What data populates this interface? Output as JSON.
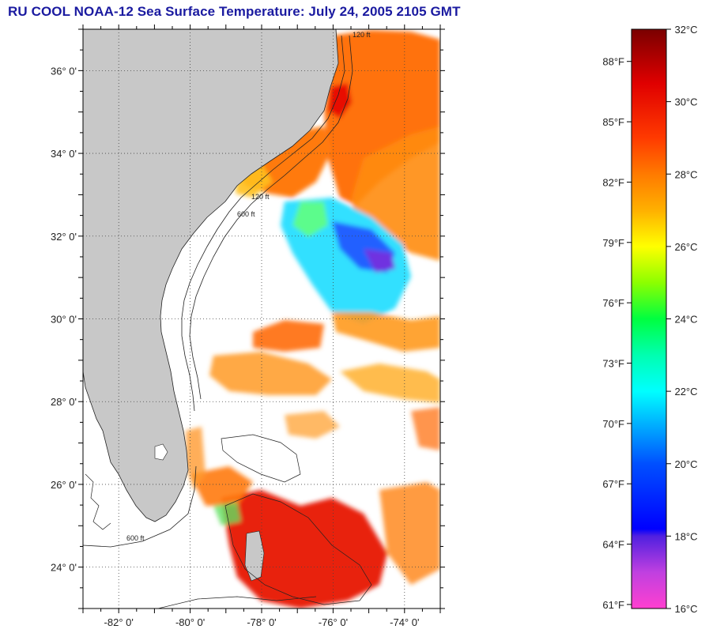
{
  "title": "RU COOL  NOAA-12  Sea Surface Temperature:  July 24, 2005 2105 GMT",
  "map": {
    "lat_ticks": [
      {
        "label": "36° 0'",
        "value": 36
      },
      {
        "label": "34° 0'",
        "value": 34
      },
      {
        "label": "32° 0'",
        "value": 32
      },
      {
        "label": "30° 0'",
        "value": 30
      },
      {
        "label": "28° 0'",
        "value": 28
      },
      {
        "label": "26° 0'",
        "value": 26
      },
      {
        "label": "24° 0'",
        "value": 24
      }
    ],
    "lon_ticks": [
      {
        "label": "-82° 0'",
        "value": -82
      },
      {
        "label": "-80° 0'",
        "value": -80
      },
      {
        "label": "-78° 0'",
        "value": -78
      },
      {
        "label": "-76° 0'",
        "value": -76
      },
      {
        "label": "-74° 0'",
        "value": -74
      }
    ],
    "lat_range": [
      23.0,
      37.0
    ],
    "lon_range": [
      -83.0,
      -73.0
    ],
    "grid": true,
    "land_color": "#c8c8c8",
    "cloud_color": "#ffffff",
    "contour_labels": [
      "120 ft",
      "600 ft"
    ]
  },
  "colorbar": {
    "celsius_labels": [
      "32°C",
      "30°C",
      "28°C",
      "26°C",
      "24°C",
      "22°C",
      "20°C",
      "18°C",
      "16°C"
    ],
    "fahrenheit_labels": [
      "88°F",
      "85°F",
      "82°F",
      "79°F",
      "76°F",
      "73°F",
      "70°F",
      "67°F",
      "64°F",
      "61°F"
    ],
    "range_c": [
      16,
      32
    ],
    "stops": [
      {
        "value_c": 32,
        "color": "#7a0000"
      },
      {
        "value_c": 30.5,
        "color": "#e00000"
      },
      {
        "value_c": 29,
        "color": "#ff3a00"
      },
      {
        "value_c": 28,
        "color": "#ff7a00"
      },
      {
        "value_c": 27,
        "color": "#ffb000"
      },
      {
        "value_c": 26,
        "color": "#ffff00"
      },
      {
        "value_c": 25,
        "color": "#8cff00"
      },
      {
        "value_c": 24,
        "color": "#00ff40"
      },
      {
        "value_c": 23,
        "color": "#00ffb0"
      },
      {
        "value_c": 22,
        "color": "#00ffff"
      },
      {
        "value_c": 21,
        "color": "#00a8ff"
      },
      {
        "value_c": 20,
        "color": "#0050ff"
      },
      {
        "value_c": 18.2,
        "color": "#0000ff"
      },
      {
        "value_c": 18,
        "color": "#5020e0"
      },
      {
        "value_c": 17,
        "color": "#c040e0"
      },
      {
        "value_c": 16,
        "color": "#ff40d0"
      }
    ]
  }
}
